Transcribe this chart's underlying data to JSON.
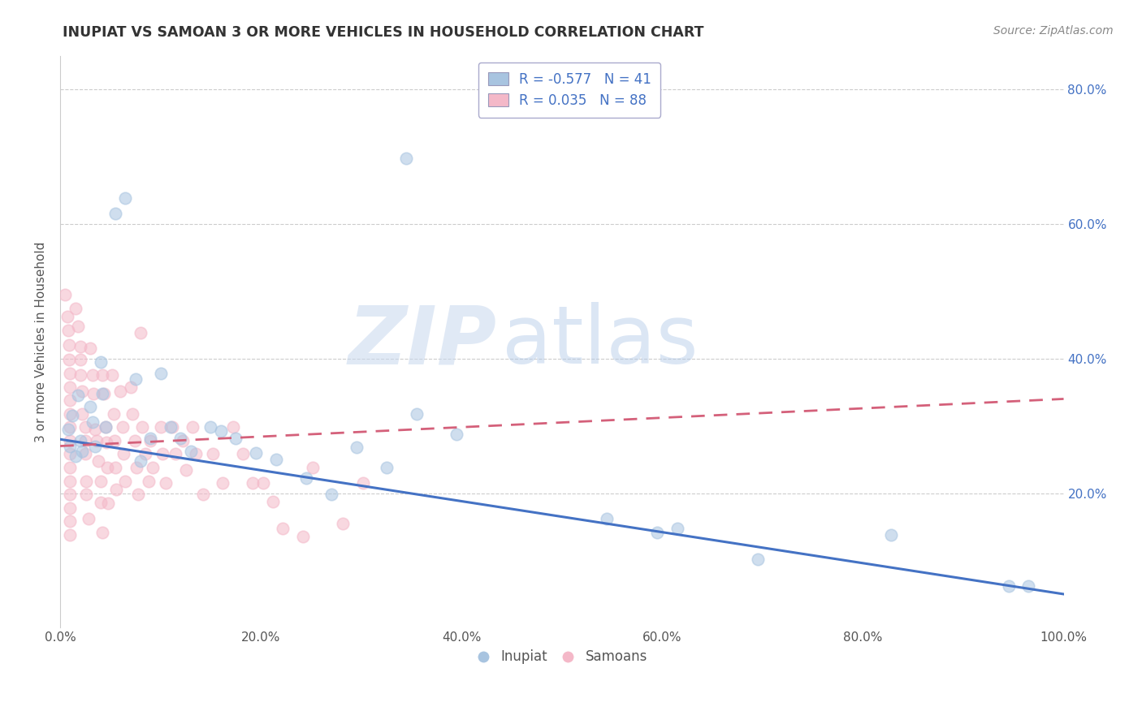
{
  "title": "INUPIAT VS SAMOAN 3 OR MORE VEHICLES IN HOUSEHOLD CORRELATION CHART",
  "source_text": "Source: ZipAtlas.com",
  "ylabel": "3 or more Vehicles in Household",
  "xlim": [
    0.0,
    1.0
  ],
  "ylim": [
    0.0,
    0.85
  ],
  "xtick_labels": [
    "0.0%",
    "20.0%",
    "40.0%",
    "60.0%",
    "80.0%",
    "100.0%"
  ],
  "xtick_vals": [
    0.0,
    0.2,
    0.4,
    0.6,
    0.8,
    1.0
  ],
  "ytick_labels": [
    "20.0%",
    "40.0%",
    "60.0%",
    "80.0%"
  ],
  "ytick_vals": [
    0.2,
    0.4,
    0.6,
    0.8
  ],
  "inupiat_color": "#a8c4e0",
  "samoan_color": "#f4b8c8",
  "inupiat_line_color": "#4472c4",
  "samoan_line_color": "#d4607a",
  "inupiat_R": -0.577,
  "inupiat_N": 41,
  "samoan_R": 0.035,
  "samoan_N": 88,
  "watermark_ZIP": "ZIP",
  "watermark_atlas": "atlas",
  "background_color": "#ffffff",
  "grid_color": "#cccccc",
  "inupiat_line": [
    0.0,
    0.28,
    1.0,
    0.05
  ],
  "samoan_line": [
    0.0,
    0.27,
    1.0,
    0.34
  ],
  "inupiat_scatter": [
    [
      0.008,
      0.295
    ],
    [
      0.01,
      0.27
    ],
    [
      0.012,
      0.315
    ],
    [
      0.015,
      0.255
    ],
    [
      0.018,
      0.345
    ],
    [
      0.02,
      0.278
    ],
    [
      0.022,
      0.262
    ],
    [
      0.03,
      0.328
    ],
    [
      0.032,
      0.305
    ],
    [
      0.035,
      0.27
    ],
    [
      0.04,
      0.395
    ],
    [
      0.042,
      0.348
    ],
    [
      0.045,
      0.298
    ],
    [
      0.055,
      0.615
    ],
    [
      0.065,
      0.638
    ],
    [
      0.075,
      0.37
    ],
    [
      0.08,
      0.248
    ],
    [
      0.09,
      0.282
    ],
    [
      0.1,
      0.378
    ],
    [
      0.11,
      0.298
    ],
    [
      0.12,
      0.282
    ],
    [
      0.13,
      0.262
    ],
    [
      0.15,
      0.298
    ],
    [
      0.16,
      0.292
    ],
    [
      0.175,
      0.282
    ],
    [
      0.195,
      0.26
    ],
    [
      0.215,
      0.25
    ],
    [
      0.245,
      0.222
    ],
    [
      0.27,
      0.198
    ],
    [
      0.295,
      0.268
    ],
    [
      0.325,
      0.238
    ],
    [
      0.345,
      0.698
    ],
    [
      0.355,
      0.318
    ],
    [
      0.395,
      0.288
    ],
    [
      0.545,
      0.162
    ],
    [
      0.595,
      0.142
    ],
    [
      0.615,
      0.148
    ],
    [
      0.695,
      0.102
    ],
    [
      0.828,
      0.138
    ],
    [
      0.945,
      0.062
    ],
    [
      0.965,
      0.062
    ]
  ],
  "samoan_scatter": [
    [
      0.005,
      0.495
    ],
    [
      0.007,
      0.462
    ],
    [
      0.008,
      0.442
    ],
    [
      0.009,
      0.42
    ],
    [
      0.009,
      0.398
    ],
    [
      0.01,
      0.378
    ],
    [
      0.01,
      0.358
    ],
    [
      0.01,
      0.338
    ],
    [
      0.01,
      0.318
    ],
    [
      0.01,
      0.298
    ],
    [
      0.01,
      0.278
    ],
    [
      0.01,
      0.258
    ],
    [
      0.01,
      0.238
    ],
    [
      0.01,
      0.218
    ],
    [
      0.01,
      0.198
    ],
    [
      0.01,
      0.178
    ],
    [
      0.01,
      0.158
    ],
    [
      0.01,
      0.138
    ],
    [
      0.015,
      0.475
    ],
    [
      0.018,
      0.448
    ],
    [
      0.02,
      0.418
    ],
    [
      0.02,
      0.398
    ],
    [
      0.02,
      0.375
    ],
    [
      0.022,
      0.352
    ],
    [
      0.022,
      0.318
    ],
    [
      0.025,
      0.298
    ],
    [
      0.025,
      0.278
    ],
    [
      0.025,
      0.258
    ],
    [
      0.026,
      0.218
    ],
    [
      0.026,
      0.198
    ],
    [
      0.028,
      0.162
    ],
    [
      0.03,
      0.415
    ],
    [
      0.032,
      0.375
    ],
    [
      0.033,
      0.348
    ],
    [
      0.035,
      0.295
    ],
    [
      0.036,
      0.278
    ],
    [
      0.038,
      0.248
    ],
    [
      0.04,
      0.218
    ],
    [
      0.04,
      0.186
    ],
    [
      0.042,
      0.142
    ],
    [
      0.042,
      0.375
    ],
    [
      0.044,
      0.348
    ],
    [
      0.045,
      0.298
    ],
    [
      0.046,
      0.275
    ],
    [
      0.047,
      0.238
    ],
    [
      0.048,
      0.185
    ],
    [
      0.052,
      0.375
    ],
    [
      0.053,
      0.318
    ],
    [
      0.054,
      0.278
    ],
    [
      0.055,
      0.238
    ],
    [
      0.056,
      0.205
    ],
    [
      0.06,
      0.352
    ],
    [
      0.062,
      0.298
    ],
    [
      0.063,
      0.258
    ],
    [
      0.065,
      0.218
    ],
    [
      0.07,
      0.358
    ],
    [
      0.072,
      0.318
    ],
    [
      0.074,
      0.278
    ],
    [
      0.076,
      0.238
    ],
    [
      0.078,
      0.198
    ],
    [
      0.08,
      0.438
    ],
    [
      0.082,
      0.298
    ],
    [
      0.085,
      0.258
    ],
    [
      0.088,
      0.218
    ],
    [
      0.09,
      0.278
    ],
    [
      0.092,
      0.238
    ],
    [
      0.1,
      0.298
    ],
    [
      0.102,
      0.258
    ],
    [
      0.105,
      0.215
    ],
    [
      0.112,
      0.298
    ],
    [
      0.115,
      0.258
    ],
    [
      0.122,
      0.278
    ],
    [
      0.125,
      0.235
    ],
    [
      0.132,
      0.298
    ],
    [
      0.135,
      0.258
    ],
    [
      0.142,
      0.198
    ],
    [
      0.152,
      0.258
    ],
    [
      0.162,
      0.215
    ],
    [
      0.172,
      0.298
    ],
    [
      0.182,
      0.258
    ],
    [
      0.192,
      0.215
    ],
    [
      0.202,
      0.215
    ],
    [
      0.212,
      0.188
    ],
    [
      0.222,
      0.148
    ],
    [
      0.242,
      0.135
    ],
    [
      0.252,
      0.238
    ],
    [
      0.282,
      0.155
    ],
    [
      0.302,
      0.215
    ]
  ]
}
